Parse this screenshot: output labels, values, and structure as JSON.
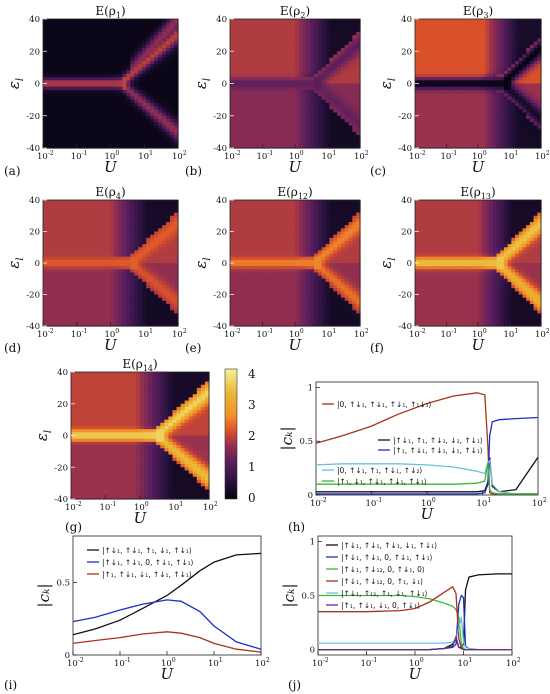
{
  "figure_axis_label": "U",
  "heatmap_ylabel": "ε",
  "heatmap_ylabel_sub": "l",
  "cbar_ticks": [
    "0",
    "1",
    "2",
    "3",
    "4"
  ],
  "chart_data": [
    {
      "id": "a",
      "panel_label": "(a)",
      "type": "heatmap",
      "title": "E(ρ1)",
      "title_main": "E(ρ",
      "title_sub": "1",
      "title_end": ")",
      "xscale": "log",
      "xlim": [
        0.01,
        100
      ],
      "ylim": [
        -40,
        40
      ],
      "xtick_labels": [
        "10-2",
        "10-1",
        "100",
        "101",
        "102"
      ],
      "ytick_labels": [
        "40",
        "20",
        "0",
        "-20",
        "-40"
      ],
      "zlim": [
        0,
        4.2
      ],
      "background_level": 0.1,
      "upper_level": 0.1,
      "lower_level": 0.1,
      "bands": "ridge along ε≈0 splitting near U≈2–8",
      "ridge_level": 2.0,
      "split_U": 2,
      "dark_lobes": false
    },
    {
      "id": "b",
      "panel_label": "(b)",
      "type": "heatmap",
      "title": "E(ρ2)",
      "title_main": "E(ρ",
      "title_sub": "2",
      "title_end": ")",
      "xscale": "log",
      "xlim": [
        0.01,
        100
      ],
      "ylim": [
        -40,
        40
      ],
      "xtick_labels": [
        "10-2",
        "10-1",
        "100",
        "101",
        "102"
      ],
      "ytick_labels": [
        "40",
        "20",
        "0",
        "-20",
        "-40"
      ],
      "zlim": [
        0,
        4.2
      ],
      "upper_level": 1.9,
      "lower_level": 1.6,
      "ridge_level": 1.2,
      "split_U": 4,
      "dark_lobes": true
    },
    {
      "id": "c",
      "panel_label": "(c)",
      "type": "heatmap",
      "title": "E(ρ3)",
      "title_main": "E(ρ",
      "title_sub": "3",
      "title_end": ")",
      "xscale": "log",
      "xlim": [
        0.01,
        100
      ],
      "ylim": [
        -40,
        40
      ],
      "xtick_labels": [
        "10-2",
        "10-1",
        "100",
        "101",
        "102"
      ],
      "ytick_labels": [
        "40",
        "20",
        "0",
        "-20",
        "-40"
      ],
      "zlim": [
        0,
        4.2
      ],
      "upper_level": 2.2,
      "lower_level": 1.75,
      "ridge_level": 0.0,
      "split_U": 6,
      "dark_lobes": true
    },
    {
      "id": "d",
      "panel_label": "(d)",
      "type": "heatmap",
      "title": "E(ρ4)",
      "title_main": "E(ρ",
      "title_sub": "4",
      "title_end": ")",
      "xscale": "log",
      "xlim": [
        0.01,
        100
      ],
      "ylim": [
        -40,
        40
      ],
      "xtick_labels": [
        "10-2",
        "10-1",
        "100",
        "101",
        "102"
      ],
      "ytick_labels": [
        "40",
        "20",
        "0",
        "-20",
        "-40"
      ],
      "zlim": [
        0,
        4.2
      ],
      "upper_level": 1.9,
      "lower_level": 1.7,
      "ridge_level": 2.3,
      "split_U": 4,
      "dark_lobes": true
    },
    {
      "id": "e",
      "panel_label": "(e)",
      "type": "heatmap",
      "title": "E(ρ12)",
      "title_main": "E(ρ",
      "title_sub": "12",
      "title_end": ")",
      "xscale": "log",
      "xlim": [
        0.01,
        100
      ],
      "ylim": [
        -40,
        40
      ],
      "xtick_labels": [
        "10-2",
        "10-1",
        "100",
        "101",
        "102"
      ],
      "ytick_labels": [
        "40",
        "20",
        "0",
        "-20",
        "-40"
      ],
      "zlim": [
        0,
        4.2
      ],
      "upper_level": 1.9,
      "lower_level": 1.7,
      "ridge_level": 2.6,
      "split_U": 4,
      "dark_lobes": true
    },
    {
      "id": "f",
      "panel_label": "(f)",
      "type": "heatmap",
      "title": "E(ρ13)",
      "title_main": "E(ρ",
      "title_sub": "13",
      "title_end": ")",
      "xscale": "log",
      "xlim": [
        0.01,
        100
      ],
      "ylim": [
        -40,
        40
      ],
      "xtick_labels": [
        "10-2",
        "10-1",
        "100",
        "101",
        "102"
      ],
      "ytick_labels": [
        "40",
        "20",
        "0",
        "-20",
        "-40"
      ],
      "zlim": [
        0,
        4.2
      ],
      "upper_level": 1.9,
      "lower_level": 1.75,
      "ridge_level": 3.6,
      "split_U": 4,
      "dark_lobes": true
    },
    {
      "id": "g",
      "panel_label": "(g)",
      "type": "heatmap",
      "title": "E(ρ14)",
      "title_main": "E(ρ",
      "title_sub": "14",
      "title_end": ")",
      "xscale": "log",
      "xlim": [
        0.01,
        100
      ],
      "ylim": [
        -40,
        40
      ],
      "xtick_labels": [
        "10-2",
        "10-1",
        "100",
        "101",
        "102"
      ],
      "ytick_labels": [
        "40",
        "20",
        "0",
        "-20",
        "-40"
      ],
      "zlim": [
        0,
        4.2
      ],
      "upper_level": 2.0,
      "lower_level": 1.75,
      "ridge_level": 3.8,
      "split_U": 3,
      "dark_lobes": true
    },
    {
      "id": "h",
      "panel_label": "(h)",
      "type": "line",
      "xscale": "log",
      "xlim": [
        0.01,
        100
      ],
      "ylim": [
        0,
        1.05
      ],
      "xtick_labels": [
        "10-2",
        "10-1",
        "100",
        "101",
        "102"
      ],
      "ytick_labels": [
        "0",
        "0.5",
        "1"
      ],
      "yticks": [
        0,
        0.5,
        1
      ],
      "x": [
        0.01,
        0.03,
        0.1,
        0.3,
        1,
        3,
        8,
        11,
        12.5,
        13.5,
        15,
        20,
        40,
        100
      ],
      "series": [
        {
          "name": "|0, ↑↓₁, ↑↓₁, ↑↓₁, ↑₁↓₁⟩",
          "color": "#a8321b",
          "values": [
            0.48,
            0.55,
            0.64,
            0.75,
            0.85,
            0.92,
            0.95,
            0.93,
            0.45,
            0.02,
            0.01,
            0.01,
            0.01,
            0.01
          ]
        },
        {
          "name": "|↑↓₁, ↑₁, ↑↓₁, ↓₁, ↑↓₁⟩",
          "color": "#111111",
          "values": [
            0.03,
            0.03,
            0.03,
            0.03,
            0.03,
            0.03,
            0.03,
            0.04,
            0.12,
            0.35,
            0.08,
            0.03,
            0.05,
            0.35
          ]
        },
        {
          "name": "|↑₁, ↑↓₁, ↑↓₁, ↓₁, ↑↓₁⟩",
          "color": "#1d2fc9",
          "values": [
            0.01,
            0.01,
            0.01,
            0.01,
            0.01,
            0.01,
            0.01,
            0.02,
            0.1,
            0.55,
            0.68,
            0.7,
            0.71,
            0.72
          ]
        },
        {
          "name": "|0, ↑↓₁, ↑₁, ↑↓₁, ↑↓₂⟩",
          "color": "#67c3df",
          "values": [
            0.28,
            0.29,
            0.29,
            0.29,
            0.28,
            0.26,
            0.22,
            0.2,
            0.3,
            0.32,
            0.1,
            0.03,
            0.01,
            0.01
          ]
        },
        {
          "name": "|↑₁, ↓₁, ↑↓₁, ↑↓₁, ↑↓₁⟩",
          "color": "#3fb53a",
          "values": [
            0.1,
            0.1,
            0.1,
            0.1,
            0.1,
            0.1,
            0.11,
            0.13,
            0.3,
            0.05,
            0.02,
            0.01,
            0.01,
            0.01
          ]
        }
      ]
    },
    {
      "id": "i",
      "panel_label": "(i)",
      "type": "line",
      "xscale": "log",
      "xlim": [
        0.01,
        100
      ],
      "ylim": [
        0,
        0.82
      ],
      "xtick_labels": [
        "10-2",
        "10-1",
        "100",
        "101",
        "102"
      ],
      "ytick_labels": [
        "0",
        "0.5"
      ],
      "yticks": [
        0,
        0.5
      ],
      "x": [
        0.01,
        0.03,
        0.1,
        0.3,
        1,
        2,
        5,
        10,
        30,
        100
      ],
      "series": [
        {
          "name": "|↑↓₁, ↑↓₁, ↑₁, ↓₁, ↑↓₁⟩",
          "color": "#111111",
          "values": [
            0.14,
            0.18,
            0.24,
            0.32,
            0.41,
            0.48,
            0.58,
            0.64,
            0.69,
            0.7
          ]
        },
        {
          "name": "|↑↓₁, ↑↓₁, 0, ↑↓₁, ↑↓₁⟩",
          "color": "#1d2fc9",
          "values": [
            0.23,
            0.26,
            0.31,
            0.35,
            0.38,
            0.37,
            0.3,
            0.2,
            0.09,
            0.04
          ]
        },
        {
          "name": "|↑₁, ↑↓₁, ↓₁, ↑↓₁, ↑↓₁⟩",
          "color": "#a8321b",
          "values": [
            0.08,
            0.1,
            0.12,
            0.145,
            0.16,
            0.15,
            0.12,
            0.08,
            0.04,
            0.02
          ]
        }
      ]
    },
    {
      "id": "j",
      "panel_label": "(j)",
      "type": "line",
      "xscale": "log",
      "xlim": [
        0.01,
        100
      ],
      "ylim": [
        -0.05,
        1.05
      ],
      "xtick_labels": [
        "10-2",
        "10-1",
        "100",
        "101",
        "102"
      ],
      "ytick_labels": [
        "0",
        "0.5",
        "1"
      ],
      "yticks": [
        0,
        0.5,
        1
      ],
      "x": [
        0.01,
        0.1,
        0.5,
        1,
        2,
        4,
        6,
        7,
        8,
        9,
        10,
        11,
        13,
        20,
        50,
        100
      ],
      "series": [
        {
          "name": "|↑↓₁, ↑↓₁, ↑↓₁, ↓₁, ↑↓₁⟩",
          "color": "#111111",
          "values": [
            0.0,
            0.0,
            0.0,
            0.0,
            0.0,
            0.01,
            0.05,
            0.1,
            0.02,
            0.02,
            0.05,
            0.55,
            0.67,
            0.69,
            0.7,
            0.7
          ]
        },
        {
          "name": "|↑↓₁, ↑↓₁, 0, ↑↓₁, ↑↓₁⟩",
          "color": "#1d2fc9",
          "values": [
            0.0,
            0.0,
            0.0,
            0.0,
            0.0,
            0.01,
            0.02,
            0.05,
            0.42,
            0.5,
            0.48,
            0.03,
            0.01,
            0.0,
            0.0,
            0.0
          ]
        },
        {
          "name": "|↑↓₁, ↑↓₁₂, 0, ↑↓₁, 0⟩",
          "color": "#3fb53a",
          "values": [
            0.5,
            0.5,
            0.5,
            0.49,
            0.47,
            0.43,
            0.4,
            0.37,
            0.3,
            0.05,
            0.01,
            0.0,
            0.0,
            0.0,
            0.0,
            0.0
          ]
        },
        {
          "name": "|↑↓₁, ↑↓₁₂, 0, ↑₁, ↓₁⟩",
          "color": "#a8321b",
          "values": [
            0.35,
            0.35,
            0.36,
            0.38,
            0.44,
            0.53,
            0.58,
            0.52,
            0.1,
            0.02,
            0.0,
            0.0,
            0.0,
            0.0,
            0.0,
            0.0
          ]
        },
        {
          "name": "|↑↓₁, ↑₁₂, ↑₁, ↓₁, ↑↓₁⟩",
          "color": "#67c3df",
          "values": [
            0.06,
            0.06,
            0.06,
            0.06,
            0.06,
            0.06,
            0.07,
            0.1,
            0.2,
            0.3,
            0.07,
            0.02,
            0.01,
            0.0,
            0.0,
            0.0
          ]
        },
        {
          "name": "|↑₁, ↑↓₁, ↓₁, 0, ↑↓₁⟩",
          "color": "#6b2e86",
          "values": [
            0.0,
            0.0,
            0.0,
            0.0,
            0.0,
            0.01,
            0.03,
            0.12,
            0.02,
            0.01,
            0.0,
            0.0,
            0.0,
            0.0,
            0.0,
            0.0
          ]
        }
      ]
    }
  ]
}
